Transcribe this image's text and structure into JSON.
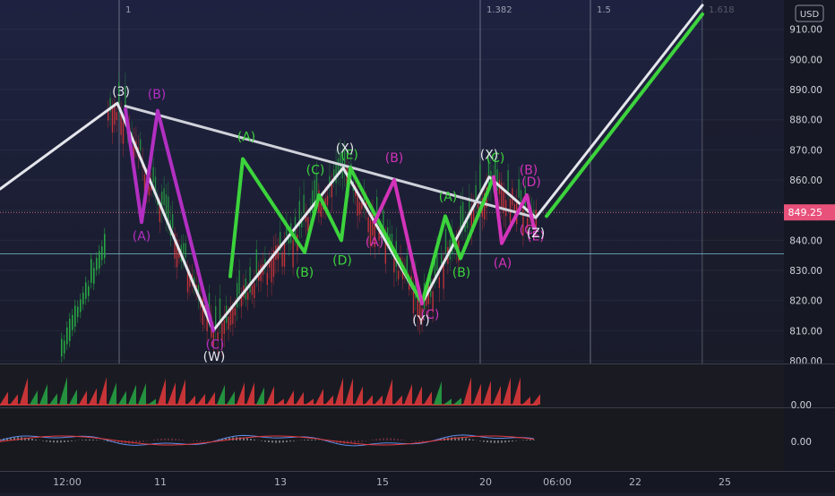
{
  "chart_data": {
    "type": "line",
    "currency": "USD",
    "current_price": "849.25",
    "price_axis": {
      "ticks": [
        "910.00",
        "900.00",
        "890.00",
        "880.00",
        "870.00",
        "860.00",
        "850.00",
        "840.00",
        "830.00",
        "820.00",
        "810.00",
        "800.00"
      ],
      "ylim": [
        800,
        912
      ]
    },
    "time_axis": {
      "ticks": [
        "12:00",
        "11",
        "13",
        "15",
        "20",
        "06:00",
        "22",
        "25"
      ]
    },
    "fib_levels": [
      "1",
      "1.382",
      "1.5",
      "1.618"
    ],
    "horizontal_level": 835.5,
    "indicator_panels": [
      {
        "name": "volume-oscillator",
        "value_label": "0.00"
      },
      {
        "name": "macd",
        "value_label": "0.00"
      }
    ],
    "series": [
      {
        "role": "white-wxy",
        "color": "#e4e6ec",
        "points": [
          {
            "t": 0,
            "p": 857
          },
          {
            "t": 131,
            "p": 885.5
          },
          {
            "t": 238,
            "p": 810
          },
          {
            "t": 383,
            "p": 864
          },
          {
            "t": 471,
            "p": 819
          },
          {
            "t": 546,
            "p": 861
          },
          {
            "t": 598,
            "p": 847.5
          },
          {
            "t": 784,
            "p": 918
          }
        ]
      },
      {
        "role": "white-trendline",
        "color": "#cfd2da",
        "points": [
          {
            "t": 140,
            "p": 884.5
          },
          {
            "t": 598,
            "p": 847.5
          }
        ]
      },
      {
        "role": "green-projection",
        "color": "#3cd33c",
        "points": [
          {
            "t": 610,
            "p": 848
          },
          {
            "t": 784,
            "p": 915
          }
        ]
      },
      {
        "role": "green-wave",
        "color": "#3cd33c",
        "points": [
          {
            "t": 257,
            "p": 828
          },
          {
            "t": 271,
            "p": 867
          },
          {
            "t": 340,
            "p": 836
          },
          {
            "t": 356,
            "p": 855
          },
          {
            "t": 381,
            "p": 840
          },
          {
            "t": 391,
            "p": 864
          },
          {
            "t": 471,
            "p": 819
          },
          {
            "t": 497,
            "p": 848
          },
          {
            "t": 514,
            "p": 834
          },
          {
            "t": 551,
            "p": 861
          }
        ]
      },
      {
        "role": "magenta-wave",
        "color": "#b22fc2",
        "points": [
          {
            "t": 140,
            "p": 883.5
          },
          {
            "t": 158,
            "p": 846
          },
          {
            "t": 176,
            "p": 883
          },
          {
            "t": 238,
            "p": 810
          }
        ]
      },
      {
        "role": "magenta-wave-2",
        "color": "#d233b9",
        "points": [
          {
            "t": 418,
            "p": 846
          },
          {
            "t": 440,
            "p": 860
          },
          {
            "t": 471,
            "p": 819
          }
        ]
      },
      {
        "role": "magenta-triangle",
        "color": "#d233b9",
        "points": [
          {
            "t": 551,
            "p": 861
          },
          {
            "t": 560,
            "p": 839
          },
          {
            "t": 588,
            "p": 855
          },
          {
            "t": 596,
            "p": 844
          }
        ]
      }
    ],
    "annotations": [
      {
        "text": "(3)",
        "t": 135,
        "p": 888,
        "color": "#e4e6ec"
      },
      {
        "text": "(B)",
        "t": 175,
        "p": 887,
        "color": "#b22fc2"
      },
      {
        "text": "(A)",
        "t": 158,
        "p": 840,
        "color": "#b22fc2"
      },
      {
        "text": "(C)",
        "t": 240,
        "p": 804,
        "color": "#b22fc2"
      },
      {
        "text": "(W)",
        "t": 239,
        "p": 800,
        "color": "#e4e6ec"
      },
      {
        "text": "(A)",
        "t": 275,
        "p": 873,
        "color": "#3cd33c"
      },
      {
        "text": "(B)",
        "t": 340,
        "p": 828,
        "color": "#3cd33c"
      },
      {
        "text": "(C)",
        "t": 352,
        "p": 862,
        "color": "#3cd33c"
      },
      {
        "text": "(D)",
        "t": 382,
        "p": 832,
        "color": "#3cd33c"
      },
      {
        "text": "(E)",
        "t": 390,
        "p": 867,
        "color": "#3cd33c"
      },
      {
        "text": "(X)",
        "t": 385,
        "p": 869,
        "color": "#e4e6ec"
      },
      {
        "text": "(B)",
        "t": 440,
        "p": 866,
        "color": "#d233b9"
      },
      {
        "text": "(A)",
        "t": 418,
        "p": 838,
        "color": "#d233b9"
      },
      {
        "text": "(C)",
        "t": 480,
        "p": 814,
        "color": "#d233b9"
      },
      {
        "text": "(Y)",
        "t": 470,
        "p": 812,
        "color": "#e4e6ec"
      },
      {
        "text": "(A)",
        "t": 500,
        "p": 853,
        "color": "#3cd33c"
      },
      {
        "text": "(B)",
        "t": 515,
        "p": 828,
        "color": "#3cd33c"
      },
      {
        "text": "(C)",
        "t": 553,
        "p": 866,
        "color": "#3cd33c"
      },
      {
        "text": "(X)",
        "t": 546,
        "p": 867,
        "color": "#e4e6ec"
      },
      {
        "text": "(A)",
        "t": 561,
        "p": 831,
        "color": "#d233b9"
      },
      {
        "text": "(B)",
        "t": 590,
        "p": 862,
        "color": "#d233b9"
      },
      {
        "text": "(D)",
        "t": 593,
        "p": 858,
        "color": "#d233b9"
      },
      {
        "text": "(C)",
        "t": 590,
        "p": 842,
        "color": "#d233b9"
      },
      {
        "text": "(E)",
        "t": 598,
        "p": 840,
        "color": "#d233b9"
      },
      {
        "text": "(Z)",
        "t": 598,
        "p": 841,
        "color": "#e4e6ec"
      }
    ]
  }
}
